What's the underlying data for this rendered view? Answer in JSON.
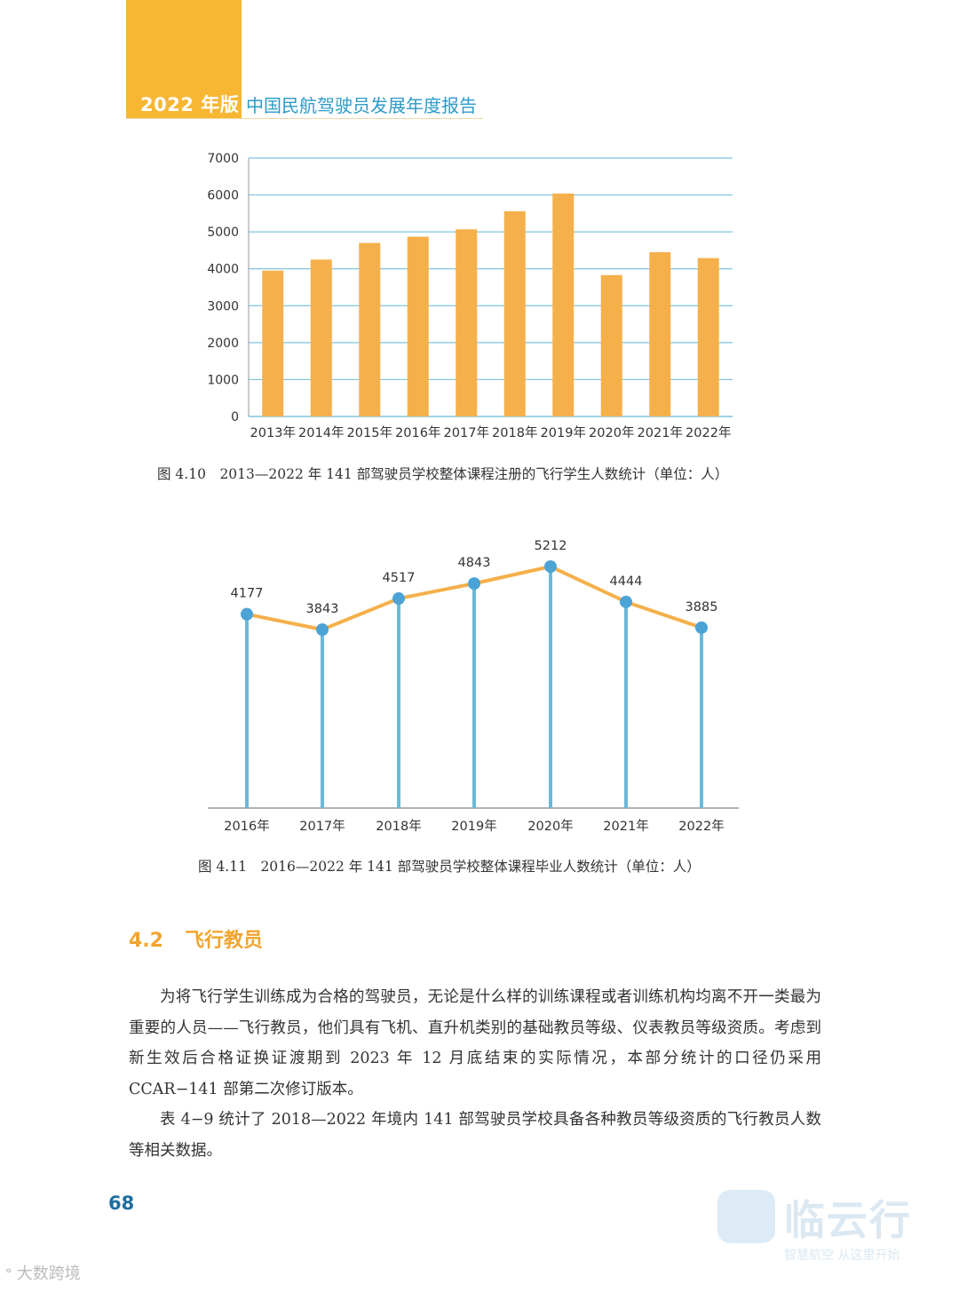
{
  "header": {
    "edition": "2022 年版",
    "title": "中国民航驾驶员发展年度报告",
    "accent_color": "#F7B733",
    "title_color": "#2B9BC8"
  },
  "chart_data": [
    {
      "type": "bar",
      "title": "",
      "categories": [
        "2013年",
        "2014年",
        "2015年",
        "2016年",
        "2017年",
        "2018年",
        "2019年",
        "2020年",
        "2021年",
        "2022年"
      ],
      "values": [
        3950,
        4250,
        4700,
        4870,
        5070,
        5560,
        6040,
        3830,
        4450,
        4290
      ],
      "ylim": [
        0,
        7000
      ],
      "yticks": [
        0,
        1000,
        2000,
        3000,
        4000,
        5000,
        6000,
        7000
      ],
      "grid": true,
      "bar_color": "#F5B04B",
      "grid_color": "#7FC4DE",
      "caption": "图 4.10　2013—2022 年 141 部驾驶员学校整体课程注册的飞行学生人数统计（单位：人）"
    },
    {
      "type": "line",
      "title": "",
      "categories": [
        "2016年",
        "2017年",
        "2018年",
        "2019年",
        "2020年",
        "2021年",
        "2022年"
      ],
      "values": [
        4177,
        3843,
        4517,
        4843,
        5212,
        4444,
        3885
      ],
      "data_labels": [
        "4177",
        "3843",
        "4517",
        "4843",
        "5212",
        "4444",
        "3885"
      ],
      "line_color": "#F5B04B",
      "stem_color": "#6BB8DA",
      "point_color": "#4BA3D6",
      "caption": "图 4.11　2016—2022 年 141 部驾驶员学校整体课程毕业人数统计（单位：人）"
    }
  ],
  "section": {
    "number": "4.2",
    "title": "飞行教员",
    "color": "#F2A42E"
  },
  "body": {
    "paragraphs": [
      "为将飞行学生训练成为合格的驾驶员，无论是什么样的训练课程或者训练机构均离不开一类最为重要的人员——飞行教员，他们具有飞机、直升机类别的基础教员等级、仪表教员等级资质。考虑到新生效后合格证换证渡期到 2023 年 12 月底结束的实际情况，本部分统计的口径仍采用 CCAR−141 部第二次修订版本。",
      "表 4−9 统计了 2018—2022 年境内 141 部驾驶员学校具备各种教员等级资质的飞行教员人数等相关数据。"
    ]
  },
  "footer": {
    "page_number": "68",
    "watermark_left": "大数跨境",
    "watermark_brand": "临云行",
    "watermark_tagline": "智慧航空 从这里开始"
  }
}
